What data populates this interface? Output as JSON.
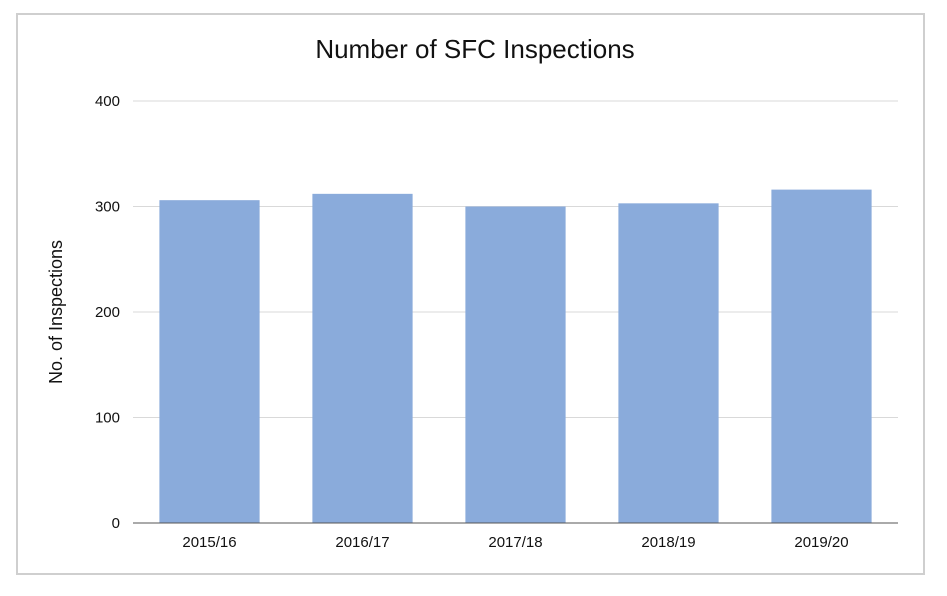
{
  "chart_data": {
    "type": "bar",
    "title": "Number of SFC Inspections",
    "xlabel": "",
    "ylabel": "No. of Inspections",
    "categories": [
      "2015/16",
      "2016/17",
      "2017/18",
      "2018/19",
      "2019/20"
    ],
    "values": [
      306,
      312,
      300,
      303,
      316
    ],
    "ylim": [
      0,
      400
    ],
    "yticks": [
      0,
      100,
      200,
      300,
      400
    ],
    "grid": true,
    "legend": "none",
    "colors": {
      "bar": "#8aabdb",
      "grid": "#d9d9d9",
      "axis": "#555555"
    }
  }
}
